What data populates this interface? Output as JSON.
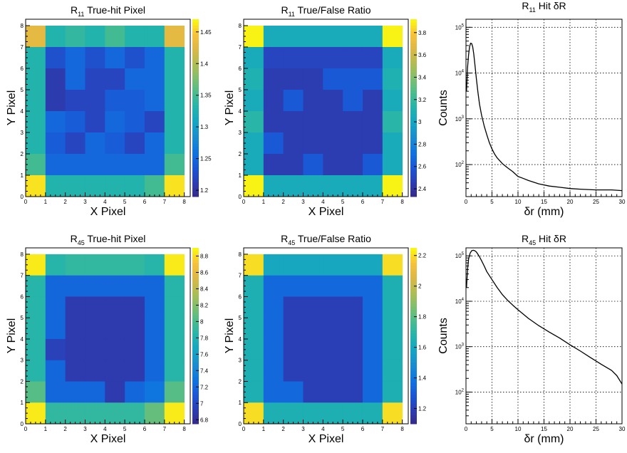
{
  "colors": {
    "palette": [
      "#352a87",
      "#2b3eb5",
      "#1a58d6",
      "#0f74e0",
      "#1a8ccf",
      "#14a4c4",
      "#22b3ad",
      "#49bc8e",
      "#7fbf6e",
      "#b1bd53",
      "#dcb746",
      "#f8c23a",
      "#f9fb0e"
    ]
  },
  "chart_data": [
    {
      "type": "heatmap",
      "title_base": "R",
      "title_sub": "11",
      "title_rest": " True-hit Pixel",
      "xlabel": "X Pixel",
      "ylabel": "Y Pixel",
      "xlim": [
        0,
        8.3
      ],
      "ylim": [
        0,
        8.3
      ],
      "x_ticks": [
        "0",
        "1",
        "2",
        "3",
        "4",
        "5",
        "6",
        "7",
        "8"
      ],
      "y_ticks": [
        "0",
        "1",
        "2",
        "3",
        "4",
        "5",
        "6",
        "7",
        "8"
      ],
      "z_range": [
        1.19,
        1.47
      ],
      "z_ticks": [
        "1.2",
        "1.25",
        "1.3",
        "1.35",
        "1.4",
        "1.45"
      ],
      "z_tick_values": [
        1.2,
        1.25,
        1.3,
        1.35,
        1.4,
        1.45
      ],
      "grid": [
        [
          1.43,
          1.33,
          1.34,
          1.33,
          1.35,
          1.33,
          1.33,
          1.43
        ],
        [
          1.33,
          1.23,
          1.25,
          1.23,
          1.25,
          1.23,
          1.25,
          1.33
        ],
        [
          1.33,
          1.21,
          1.25,
          1.22,
          1.22,
          1.25,
          1.25,
          1.33
        ],
        [
          1.33,
          1.21,
          1.22,
          1.22,
          1.24,
          1.24,
          1.25,
          1.33
        ],
        [
          1.33,
          1.25,
          1.24,
          1.22,
          1.25,
          1.24,
          1.22,
          1.33
        ],
        [
          1.33,
          1.24,
          1.22,
          1.25,
          1.24,
          1.22,
          1.25,
          1.33
        ],
        [
          1.35,
          1.25,
          1.25,
          1.25,
          1.25,
          1.25,
          1.25,
          1.35
        ],
        [
          1.46,
          1.33,
          1.33,
          1.33,
          1.33,
          1.33,
          1.35,
          1.46
        ]
      ]
    },
    {
      "type": "heatmap",
      "title_base": "R",
      "title_sub": "11",
      "title_rest": " True/False Ratio",
      "xlabel": "X Pixel",
      "ylabel": "Y Pixel",
      "xlim": [
        0,
        8.3
      ],
      "ylim": [
        0,
        8.3
      ],
      "x_ticks": [
        "0",
        "1",
        "2",
        "3",
        "4",
        "5",
        "6",
        "7",
        "8"
      ],
      "y_ticks": [
        "0",
        "1",
        "2",
        "3",
        "4",
        "5",
        "6",
        "7",
        "8"
      ],
      "z_range": [
        2.33,
        3.92
      ],
      "z_ticks": [
        "2.4",
        "2.6",
        "2.8",
        "3",
        "3.2",
        "3.4",
        "3.6",
        "3.8"
      ],
      "z_tick_values": [
        2.4,
        2.6,
        2.8,
        3.0,
        3.2,
        3.4,
        3.6,
        3.8
      ],
      "grid": [
        [
          3.9,
          3.05,
          3.05,
          3.05,
          3.05,
          3.05,
          3.05,
          3.9
        ],
        [
          3.05,
          2.5,
          2.5,
          2.5,
          2.5,
          2.5,
          2.5,
          3.05
        ],
        [
          3.1,
          2.45,
          2.45,
          2.45,
          2.6,
          2.6,
          2.6,
          3.1
        ],
        [
          3.05,
          2.45,
          2.6,
          2.45,
          2.45,
          2.6,
          2.45,
          3.05
        ],
        [
          3.15,
          2.45,
          2.45,
          2.45,
          2.45,
          2.45,
          2.45,
          3.15
        ],
        [
          3.05,
          2.6,
          2.45,
          2.45,
          2.45,
          2.45,
          2.45,
          3.05
        ],
        [
          3.05,
          2.45,
          2.45,
          2.6,
          2.45,
          2.45,
          2.6,
          3.05
        ],
        [
          3.9,
          3.05,
          3.05,
          3.05,
          3.05,
          3.05,
          3.05,
          3.9
        ]
      ]
    },
    {
      "type": "line",
      "title_base": "R",
      "title_sub": "11",
      "title_rest": " Hit δR",
      "xlabel": "δr (mm)",
      "ylabel": "Counts",
      "xlim": [
        0,
        30
      ],
      "ylim": [
        20,
        150000
      ],
      "log_y": true,
      "grid": true,
      "x_ticks": [
        0,
        5,
        10,
        15,
        20,
        25,
        30
      ],
      "y_decades": [
        2,
        3,
        4,
        5
      ],
      "series": [
        {
          "x": [
            0.1,
            0.3,
            0.5,
            0.7,
            0.9,
            1.1,
            1.3,
            1.5,
            1.7,
            2.0,
            2.3,
            2.6,
            3.0,
            3.5,
            4.0,
            4.5,
            5.0,
            5.5,
            6.0,
            7.0,
            8.0,
            9.0,
            10.0,
            11.0,
            12.0,
            14.0,
            16.0,
            18.0,
            20.0,
            22.0,
            25.0,
            28.0,
            30.0
          ],
          "y": [
            4000,
            13000,
            25000,
            38000,
            45000,
            44000,
            37000,
            26000,
            16000,
            7500,
            3800,
            2100,
            1200,
            700,
            450,
            300,
            220,
            170,
            140,
            105,
            85,
            70,
            55,
            50,
            45,
            38,
            34,
            32,
            30,
            29,
            28,
            28,
            27
          ]
        }
      ]
    },
    {
      "type": "heatmap",
      "title_base": "R",
      "title_sub": "45",
      "title_rest": " True-hit Pixel",
      "xlabel": "X Pixel",
      "ylabel": "Y Pixel",
      "xlim": [
        0,
        8.3
      ],
      "ylim": [
        0,
        8.3
      ],
      "x_ticks": [
        "0",
        "1",
        "2",
        "3",
        "4",
        "5",
        "6",
        "7",
        "8"
      ],
      "y_ticks": [
        "0",
        "1",
        "2",
        "3",
        "4",
        "5",
        "6",
        "7",
        "8"
      ],
      "z_range": [
        6.75,
        8.9
      ],
      "z_ticks": [
        "6.8",
        "7",
        "7.2",
        "7.4",
        "7.6",
        "7.8",
        "8",
        "8.2",
        "8.4",
        "8.6",
        "8.8"
      ],
      "z_tick_values": [
        6.8,
        7.0,
        7.2,
        7.4,
        7.6,
        7.8,
        8.0,
        8.2,
        8.4,
        8.6,
        8.8
      ],
      "grid": [
        [
          8.85,
          7.85,
          7.9,
          7.9,
          7.9,
          7.9,
          7.85,
          8.85
        ],
        [
          7.85,
          7.2,
          7.2,
          7.2,
          7.2,
          7.2,
          7.2,
          7.85
        ],
        [
          7.85,
          7.2,
          6.9,
          6.9,
          6.9,
          6.9,
          7.2,
          7.85
        ],
        [
          7.85,
          7.2,
          6.9,
          6.9,
          6.9,
          6.9,
          7.2,
          7.85
        ],
        [
          7.85,
          6.95,
          6.9,
          6.9,
          6.9,
          6.9,
          7.2,
          7.85
        ],
        [
          7.85,
          7.2,
          6.9,
          6.9,
          6.9,
          6.9,
          7.2,
          7.85
        ],
        [
          8.05,
          7.2,
          7.2,
          7.2,
          6.9,
          7.2,
          7.3,
          8.05
        ],
        [
          8.85,
          7.9,
          7.9,
          7.9,
          7.9,
          7.9,
          8.1,
          8.85
        ]
      ]
    },
    {
      "type": "heatmap",
      "title_base": "R",
      "title_sub": "45",
      "title_rest": " True/False Ratio",
      "xlabel": "X Pixel",
      "ylabel": "Y Pixel",
      "xlim": [
        0,
        8.3
      ],
      "ylim": [
        0,
        8.3
      ],
      "x_ticks": [
        "0",
        "1",
        "2",
        "3",
        "4",
        "5",
        "6",
        "7",
        "8"
      ],
      "y_ticks": [
        "0",
        "1",
        "2",
        "3",
        "4",
        "5",
        "6",
        "7",
        "8"
      ],
      "z_range": [
        1.1,
        2.25
      ],
      "z_ticks": [
        "1.2",
        "1.4",
        "1.6",
        "1.8",
        "2",
        "2.2"
      ],
      "z_tick_values": [
        1.2,
        1.4,
        1.6,
        1.8,
        2.0,
        2.2
      ],
      "grid": [
        [
          2.2,
          1.6,
          1.6,
          1.6,
          1.6,
          1.6,
          1.6,
          2.2
        ],
        [
          1.65,
          1.35,
          1.35,
          1.35,
          1.35,
          1.35,
          1.35,
          1.65
        ],
        [
          1.65,
          1.35,
          1.2,
          1.2,
          1.2,
          1.2,
          1.35,
          1.65
        ],
        [
          1.65,
          1.35,
          1.2,
          1.2,
          1.2,
          1.2,
          1.35,
          1.65
        ],
        [
          1.65,
          1.35,
          1.2,
          1.2,
          1.2,
          1.2,
          1.35,
          1.65
        ],
        [
          1.65,
          1.35,
          1.2,
          1.2,
          1.2,
          1.2,
          1.35,
          1.65
        ],
        [
          1.65,
          1.35,
          1.35,
          1.2,
          1.2,
          1.2,
          1.35,
          1.65
        ],
        [
          2.2,
          1.65,
          1.65,
          1.65,
          1.65,
          1.65,
          1.65,
          2.2
        ]
      ]
    },
    {
      "type": "line",
      "title_base": "R",
      "title_sub": "45",
      "title_rest": " Hit δR",
      "xlabel": "δr (mm)",
      "ylabel": "Counts",
      "xlim": [
        0,
        30
      ],
      "ylim": [
        20,
        150000
      ],
      "log_y": true,
      "grid": true,
      "x_ticks": [
        0,
        5,
        10,
        15,
        20,
        25,
        30
      ],
      "y_decades": [
        2,
        3,
        4,
        5
      ],
      "series": [
        {
          "x": [
            0.1,
            0.3,
            0.5,
            0.8,
            1.1,
            1.4,
            1.7,
            2.0,
            2.5,
            3.0,
            3.5,
            4.0,
            5.0,
            6.0,
            7.0,
            8.0,
            9.0,
            10.0,
            12.0,
            14.0,
            16.0,
            18.0,
            20.0,
            22.0,
            24.0,
            26.0,
            28.0,
            29.0,
            30.0
          ],
          "y": [
            20000,
            50000,
            85000,
            115000,
            130000,
            133000,
            130000,
            122000,
            100000,
            78000,
            60000,
            45000,
            30000,
            20000,
            14000,
            10500,
            8200,
            6500,
            4200,
            2900,
            2100,
            1550,
            1100,
            800,
            570,
            410,
            300,
            230,
            150
          ]
        }
      ]
    }
  ]
}
